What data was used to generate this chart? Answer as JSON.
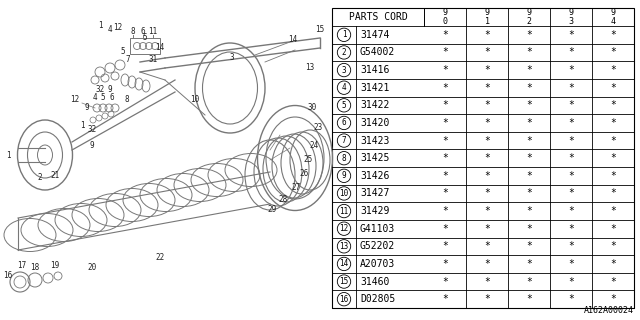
{
  "rows": [
    [
      "1",
      "31474"
    ],
    [
      "2",
      "G54002"
    ],
    [
      "3",
      "31416"
    ],
    [
      "4",
      "31421"
    ],
    [
      "5",
      "31422"
    ],
    [
      "6",
      "31420"
    ],
    [
      "7",
      "31423"
    ],
    [
      "8",
      "31425"
    ],
    [
      "9",
      "31426"
    ],
    [
      "10",
      "31427"
    ],
    [
      "11",
      "31429"
    ],
    [
      "12",
      "G41103"
    ],
    [
      "13",
      "G52202"
    ],
    [
      "14",
      "A20703"
    ],
    [
      "15",
      "31460"
    ],
    [
      "16",
      "D02805"
    ]
  ],
  "year_cols": [
    "9\n0",
    "9\n1",
    "9\n2",
    "9\n3",
    "9\n4"
  ],
  "footer_text": "A162A00024",
  "bg_color": "#ffffff",
  "line_color": "#000000",
  "draw_color": "#777777"
}
